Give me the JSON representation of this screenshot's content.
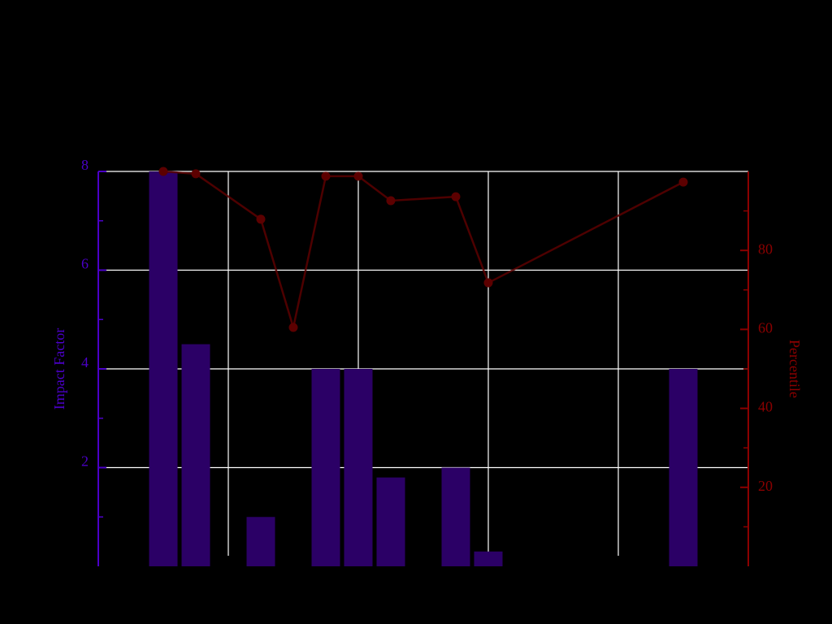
{
  "chart_data": {
    "type": "bar",
    "ylabel": "Impact Factor",
    "y2label": "Percentile",
    "xlim": [
      0,
      20
    ],
    "xticks": [
      4,
      8,
      12,
      16
    ],
    "ylim": [
      0,
      8
    ],
    "yticks": [
      2,
      4,
      6,
      8
    ],
    "yminorticks": [
      1,
      3,
      5,
      7
    ],
    "y2lim": [
      0,
      100
    ],
    "y2ticks": [
      20,
      40,
      60,
      80
    ],
    "y2minorticks": [
      10,
      30,
      50,
      70,
      90
    ],
    "grid": true,
    "left_axis_color": "#4b00c8",
    "right_axis_color": "#8b0000",
    "series": [
      {
        "type": "bar",
        "color": "#2b0066",
        "x": [
          2,
          3,
          5,
          7,
          8,
          9,
          11,
          12,
          18
        ],
        "values": [
          8,
          4.5,
          1,
          4,
          4,
          1.8,
          2,
          0.3,
          4
        ]
      },
      {
        "type": "line",
        "axis": "y2",
        "color": "#5c0000",
        "x": [
          2,
          3,
          5,
          6,
          7,
          8,
          9,
          11,
          12,
          18
        ],
        "values": [
          100,
          99.4,
          87.9,
          60.5,
          98.8,
          98.8,
          92.6,
          93.6,
          71.8,
          97.3
        ]
      }
    ]
  }
}
